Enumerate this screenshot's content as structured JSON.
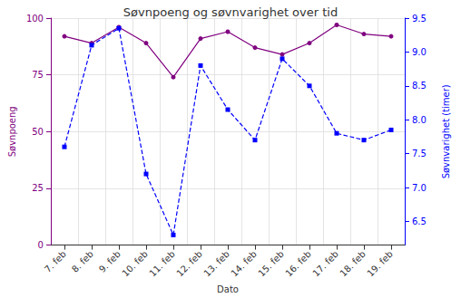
{
  "chart_data": {
    "type": "line",
    "title": "Søvnpoeng og søvnvarighet over tid",
    "x_label": "Dato",
    "y_label": "Søvnpoeng",
    "y2_label": "Søvnvarighet (timer)",
    "categories": [
      "7. feb",
      "8. feb",
      "9. feb",
      "10. feb",
      "11. feb",
      "12. feb",
      "13. feb",
      "14. feb",
      "15. feb",
      "16. feb",
      "17. feb",
      "18. feb",
      "19. feb"
    ],
    "series": [
      {
        "name": "Søvnpoeng",
        "color": "#800080",
        "marker": "circle",
        "line_style": "solid",
        "values": [
          92,
          89,
          96,
          89,
          74,
          91,
          94,
          87,
          84,
          89,
          97,
          93,
          92
        ]
      },
      {
        "name": "Søvnvarighet (timer)",
        "color": "#0000ff",
        "marker": "square",
        "line_style": "dashed",
        "axis": "y2",
        "values": [
          7.6,
          9.1,
          9.35,
          7.2,
          6.3,
          8.8,
          8.15,
          7.7,
          8.9,
          8.5,
          7.8,
          7.7,
          7.85
        ]
      }
    ],
    "ylim": [
      0,
      100
    ],
    "yticks": [
      0,
      25,
      50,
      75,
      100
    ],
    "y2lim": [
      6.15,
      9.5
    ],
    "y2ticks": [
      6.5,
      {
        "value": 7,
        "label": "7.0"
      },
      7.5,
      {
        "value": 8,
        "label": "8.0"
      },
      8.5,
      {
        "value": 9,
        "label": "9.0"
      },
      9.5
    ],
    "grid": true
  }
}
